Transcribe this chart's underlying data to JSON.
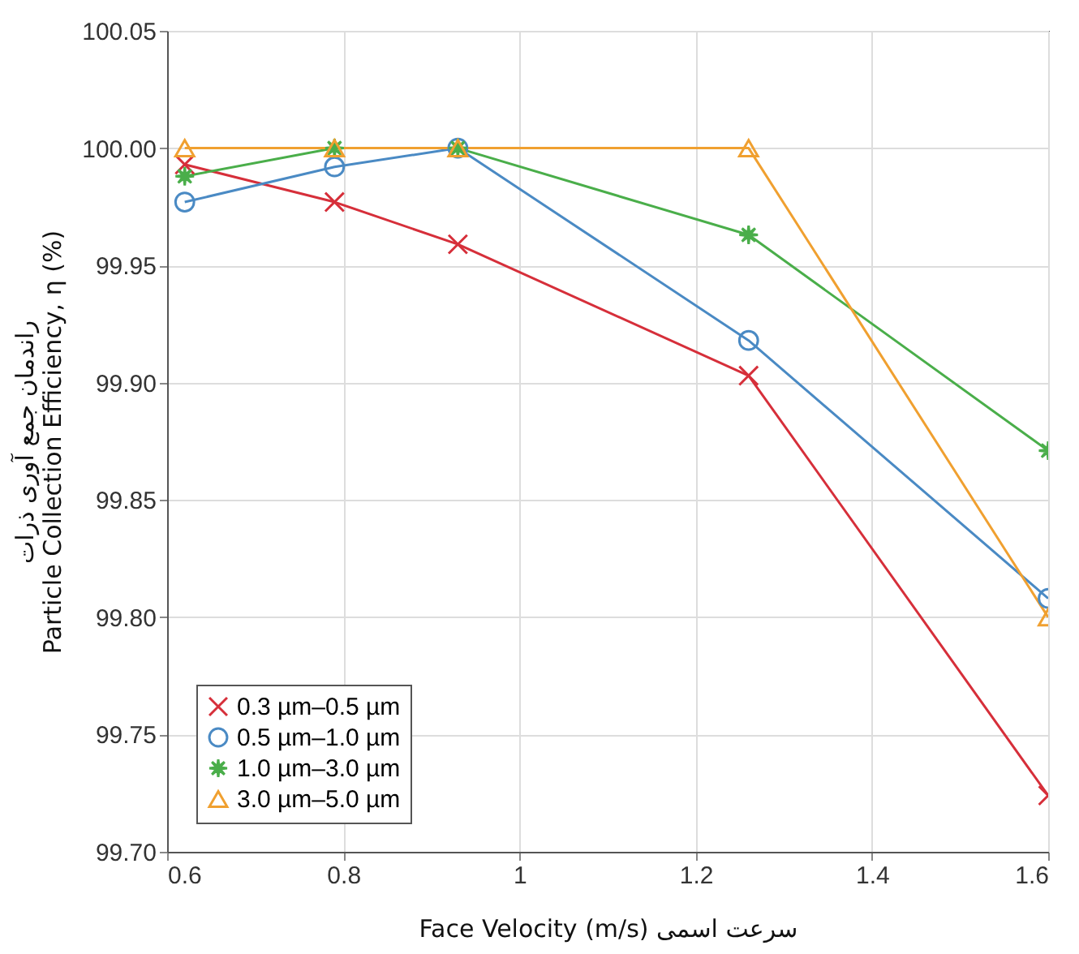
{
  "chart_data": {
    "type": "line",
    "ylabel": [
      "راندمان جمع آوری ذرات",
      "Particle Collection Efficiency, η (%)"
    ],
    "xlabel": [
      "Face Velocity (m/s)",
      "سرعت اسمی"
    ],
    "x": [
      0.62,
      0.79,
      0.93,
      1.26,
      1.6
    ],
    "series": [
      {
        "name": "0.3 µm–0.5 µm",
        "color": "#d62f3a",
        "marker": "cross",
        "values": [
          99.993,
          99.977,
          99.959,
          99.903,
          99.724
        ]
      },
      {
        "name": "0.5 µm–1.0 µm",
        "color": "#4a8ac4",
        "marker": "circle",
        "values": [
          99.977,
          99.992,
          100.0,
          99.918,
          99.808
        ]
      },
      {
        "name": "1.0 µm–3.0 µm",
        "color": "#4aae4a",
        "marker": "star",
        "values": [
          99.988,
          100.0,
          100.0,
          99.963,
          99.871
        ]
      },
      {
        "name": "3.0 µm–5.0 µm",
        "color": "#f0a030",
        "marker": "triangle",
        "values": [
          100.0,
          100.0,
          100.0,
          100.0,
          99.8
        ]
      }
    ],
    "xlim": [
      0.6,
      1.6
    ],
    "xticks": [
      0.6,
      0.8,
      1,
      1.2,
      1.4,
      1.6
    ],
    "ylim": [
      99.7,
      100.05
    ],
    "yticks": [
      {
        "value": 99.7,
        "label": "99.70"
      },
      {
        "value": 99.75,
        "label": "99.75"
      },
      {
        "value": 99.8,
        "label": "99.80"
      },
      {
        "value": 99.85,
        "label": "99.85"
      },
      {
        "value": 99.9,
        "label": "99.90"
      },
      {
        "value": 99.95,
        "label": "99.95"
      },
      {
        "value": 100,
        "label": "100.00"
      },
      {
        "value": 100.05,
        "label": "100.05"
      }
    ],
    "grid": true,
    "legend": "bottom left",
    "line_style": "solid"
  }
}
